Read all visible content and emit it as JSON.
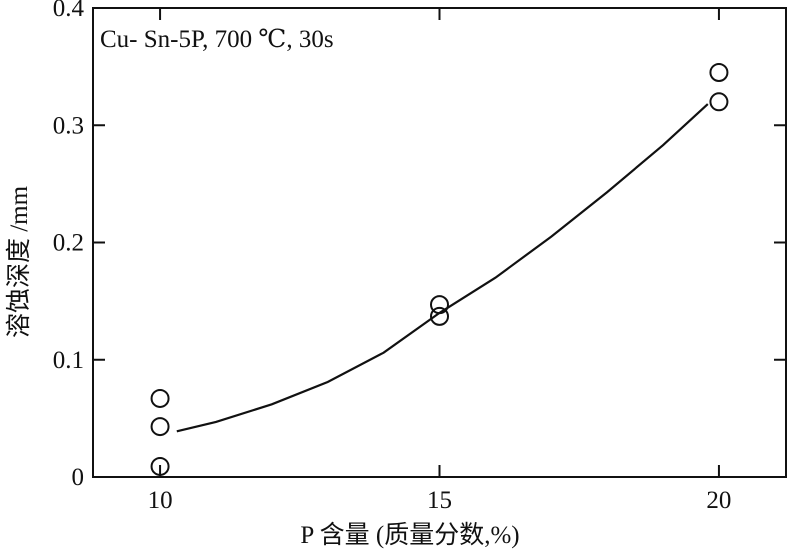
{
  "chart_data": {
    "type": "scatter",
    "annotation": "Cu- Sn-5P, 700 ℃, 30s",
    "xlabel": "P 含量 (质量分数,%)",
    "ylabel": "溶蚀深度 /mm",
    "xlim": [
      8.8,
      21.2
    ],
    "ylim": [
      0,
      0.4
    ],
    "x_ticks": [
      10,
      15,
      20
    ],
    "y_ticks": [
      0,
      0.1,
      0.2,
      0.3,
      0.4
    ],
    "x_tick_labels": [
      "10",
      "15",
      "20"
    ],
    "y_tick_labels": [
      "0",
      "0.1",
      "0.2",
      "0.3",
      "0.4"
    ],
    "grid": false,
    "series": [
      {
        "marker": "open-circle",
        "points": [
          {
            "x": 10,
            "y": 0.067
          },
          {
            "x": 10,
            "y": 0.043
          },
          {
            "x": 10,
            "y": 0.009
          },
          {
            "x": 15,
            "y": 0.147
          },
          {
            "x": 15,
            "y": 0.137
          },
          {
            "x": 20,
            "y": 0.345
          },
          {
            "x": 20,
            "y": 0.32
          }
        ]
      }
    ],
    "fit_curve": {
      "points": [
        {
          "x": 10.3,
          "y": 0.039
        },
        {
          "x": 11,
          "y": 0.047
        },
        {
          "x": 12,
          "y": 0.062
        },
        {
          "x": 13,
          "y": 0.081
        },
        {
          "x": 14,
          "y": 0.106
        },
        {
          "x": 15,
          "y": 0.14
        },
        {
          "x": 16,
          "y": 0.17
        },
        {
          "x": 17,
          "y": 0.205
        },
        {
          "x": 18,
          "y": 0.243
        },
        {
          "x": 19,
          "y": 0.283
        },
        {
          "x": 19.8,
          "y": 0.318
        }
      ]
    }
  }
}
